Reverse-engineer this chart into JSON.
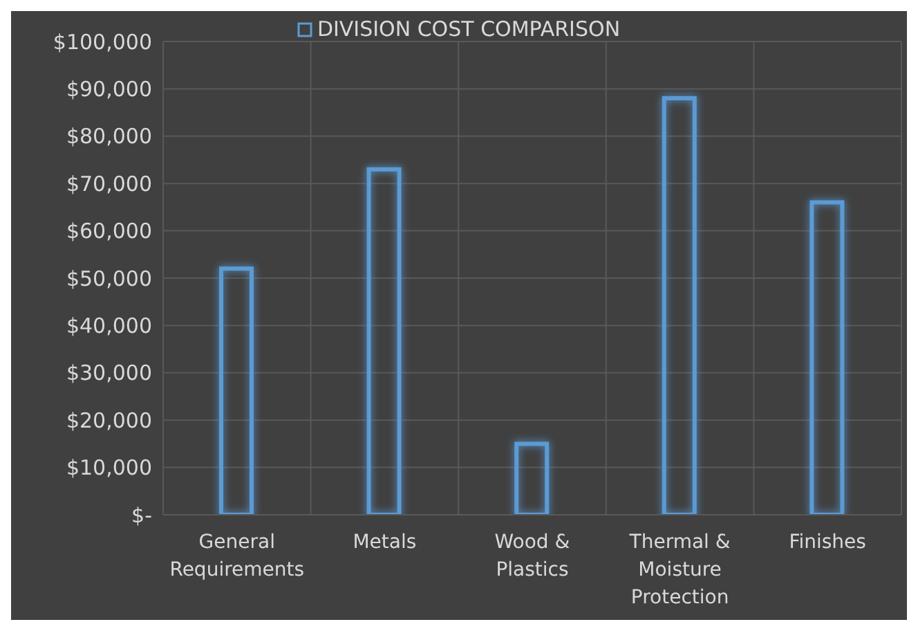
{
  "chart_data": {
    "type": "bar",
    "categories": [
      "General Requirements",
      "Metals",
      "Wood & Plastics",
      "Thermal & Moisture Protection",
      "Finishes"
    ],
    "series": [
      {
        "name": "DIVISION COST COMPARISON",
        "color": "#5b9bd5",
        "values": [
          52000,
          73000,
          15000,
          88000,
          66000
        ]
      }
    ],
    "ylim": [
      0,
      100000
    ],
    "yticks": [
      {
        "value": 0,
        "label": "$-"
      },
      {
        "value": 10000,
        "label": "$10,000"
      },
      {
        "value": 20000,
        "label": "$20,000"
      },
      {
        "value": 30000,
        "label": "$30,000"
      },
      {
        "value": 40000,
        "label": "$40,000"
      },
      {
        "value": 50000,
        "label": "$50,000"
      },
      {
        "value": 60000,
        "label": "$60,000"
      },
      {
        "value": 70000,
        "label": "$70,000"
      },
      {
        "value": 80000,
        "label": "$80,000"
      },
      {
        "value": 90000,
        "label": "$90,000"
      },
      {
        "value": 100000,
        "label": "$100,000"
      }
    ],
    "grid": true,
    "legend": "top"
  }
}
